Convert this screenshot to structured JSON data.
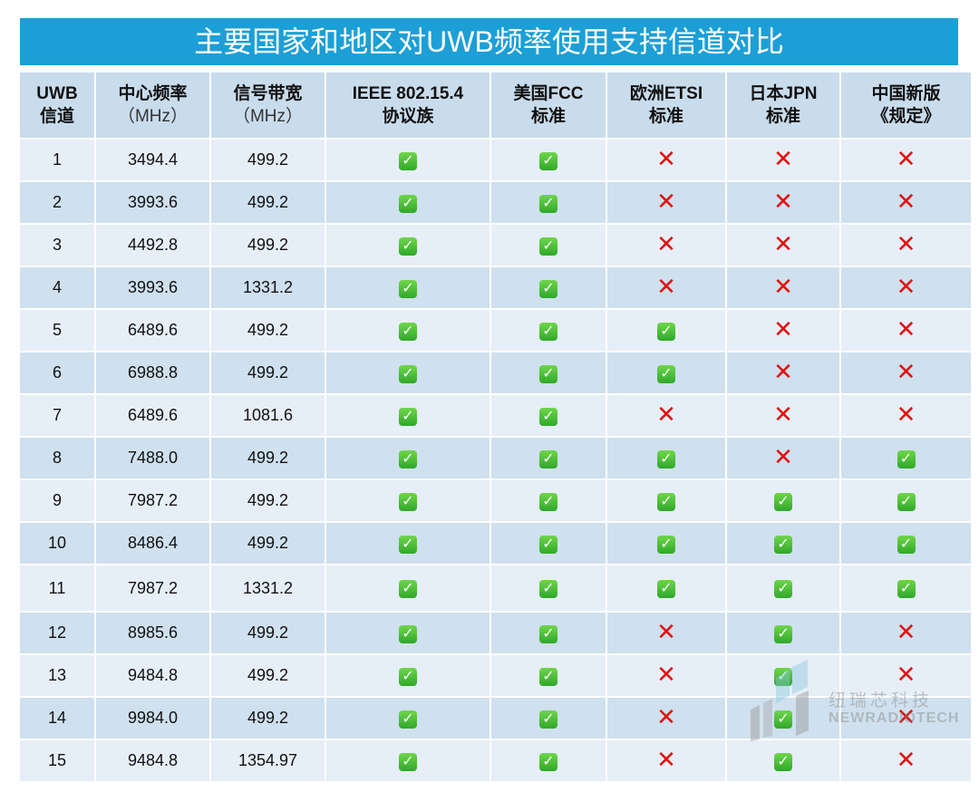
{
  "title": "主要国家和地区对UWB频率使用支持信道对比",
  "headers": [
    {
      "main": "UWB",
      "sub": "信道"
    },
    {
      "main": "中心频率",
      "sub": "（MHz）"
    },
    {
      "main": "信号带宽",
      "sub": "（MHz）"
    },
    {
      "main": "IEEE 802.15.4",
      "sub": "协议族"
    },
    {
      "main": "美国FCC",
      "sub": "标准"
    },
    {
      "main": "欧洲ETSI",
      "sub": "标准"
    },
    {
      "main": "日本JPN",
      "sub": "标准"
    },
    {
      "main": "中国新版",
      "sub": "《规定》"
    }
  ],
  "symbols": {
    "yes": "✓",
    "no": "✕"
  },
  "colors": {
    "title_bg": "#1c9fd6",
    "header_bg": "#c9dcec",
    "row_light": "#e6eef7",
    "row_dark": "#cfe0ee",
    "check": "#2fa82a",
    "cross": "#e01010"
  },
  "rows": [
    {
      "ch": "1",
      "freq": "3494.4",
      "bw": "499.2",
      "s": [
        true,
        true,
        false,
        false,
        false
      ]
    },
    {
      "ch": "2",
      "freq": "3993.6",
      "bw": "499.2",
      "s": [
        true,
        true,
        false,
        false,
        false
      ]
    },
    {
      "ch": "3",
      "freq": "4492.8",
      "bw": "499.2",
      "s": [
        true,
        true,
        false,
        false,
        false
      ]
    },
    {
      "ch": "4",
      "freq": "3993.6",
      "bw": "1331.2",
      "s": [
        true,
        true,
        false,
        false,
        false
      ]
    },
    {
      "ch": "5",
      "freq": "6489.6",
      "bw": "499.2",
      "s": [
        true,
        true,
        true,
        false,
        false
      ]
    },
    {
      "ch": "6",
      "freq": "6988.8",
      "bw": "499.2",
      "s": [
        true,
        true,
        true,
        false,
        false
      ]
    },
    {
      "ch": "7",
      "freq": "6489.6",
      "bw": "1081.6",
      "s": [
        true,
        true,
        false,
        false,
        false
      ]
    },
    {
      "ch": "8",
      "freq": "7488.0",
      "bw": "499.2",
      "s": [
        true,
        true,
        true,
        false,
        true
      ]
    },
    {
      "ch": "9",
      "freq": "7987.2",
      "bw": "499.2",
      "s": [
        true,
        true,
        true,
        true,
        true
      ]
    },
    {
      "ch": "10",
      "freq": "8486.4",
      "bw": "499.2",
      "s": [
        true,
        true,
        true,
        true,
        true
      ]
    },
    {
      "ch": "11",
      "freq": "7987.2",
      "bw": "1331.2",
      "s": [
        true,
        true,
        true,
        true,
        true
      ]
    },
    {
      "ch": "12",
      "freq": "8985.6",
      "bw": "499.2",
      "s": [
        true,
        true,
        false,
        true,
        false
      ]
    },
    {
      "ch": "13",
      "freq": "9484.8",
      "bw": "499.2",
      "s": [
        true,
        true,
        false,
        true,
        false
      ]
    },
    {
      "ch": "14",
      "freq": "9984.0",
      "bw": "499.2",
      "s": [
        true,
        true,
        false,
        true,
        false
      ]
    },
    {
      "ch": "15",
      "freq": "9484.8",
      "bw": "1354.97",
      "s": [
        true,
        true,
        false,
        true,
        false
      ]
    }
  ],
  "watermark": {
    "cn": "纽瑞芯科技",
    "en": "NEWRADIOTECH"
  }
}
